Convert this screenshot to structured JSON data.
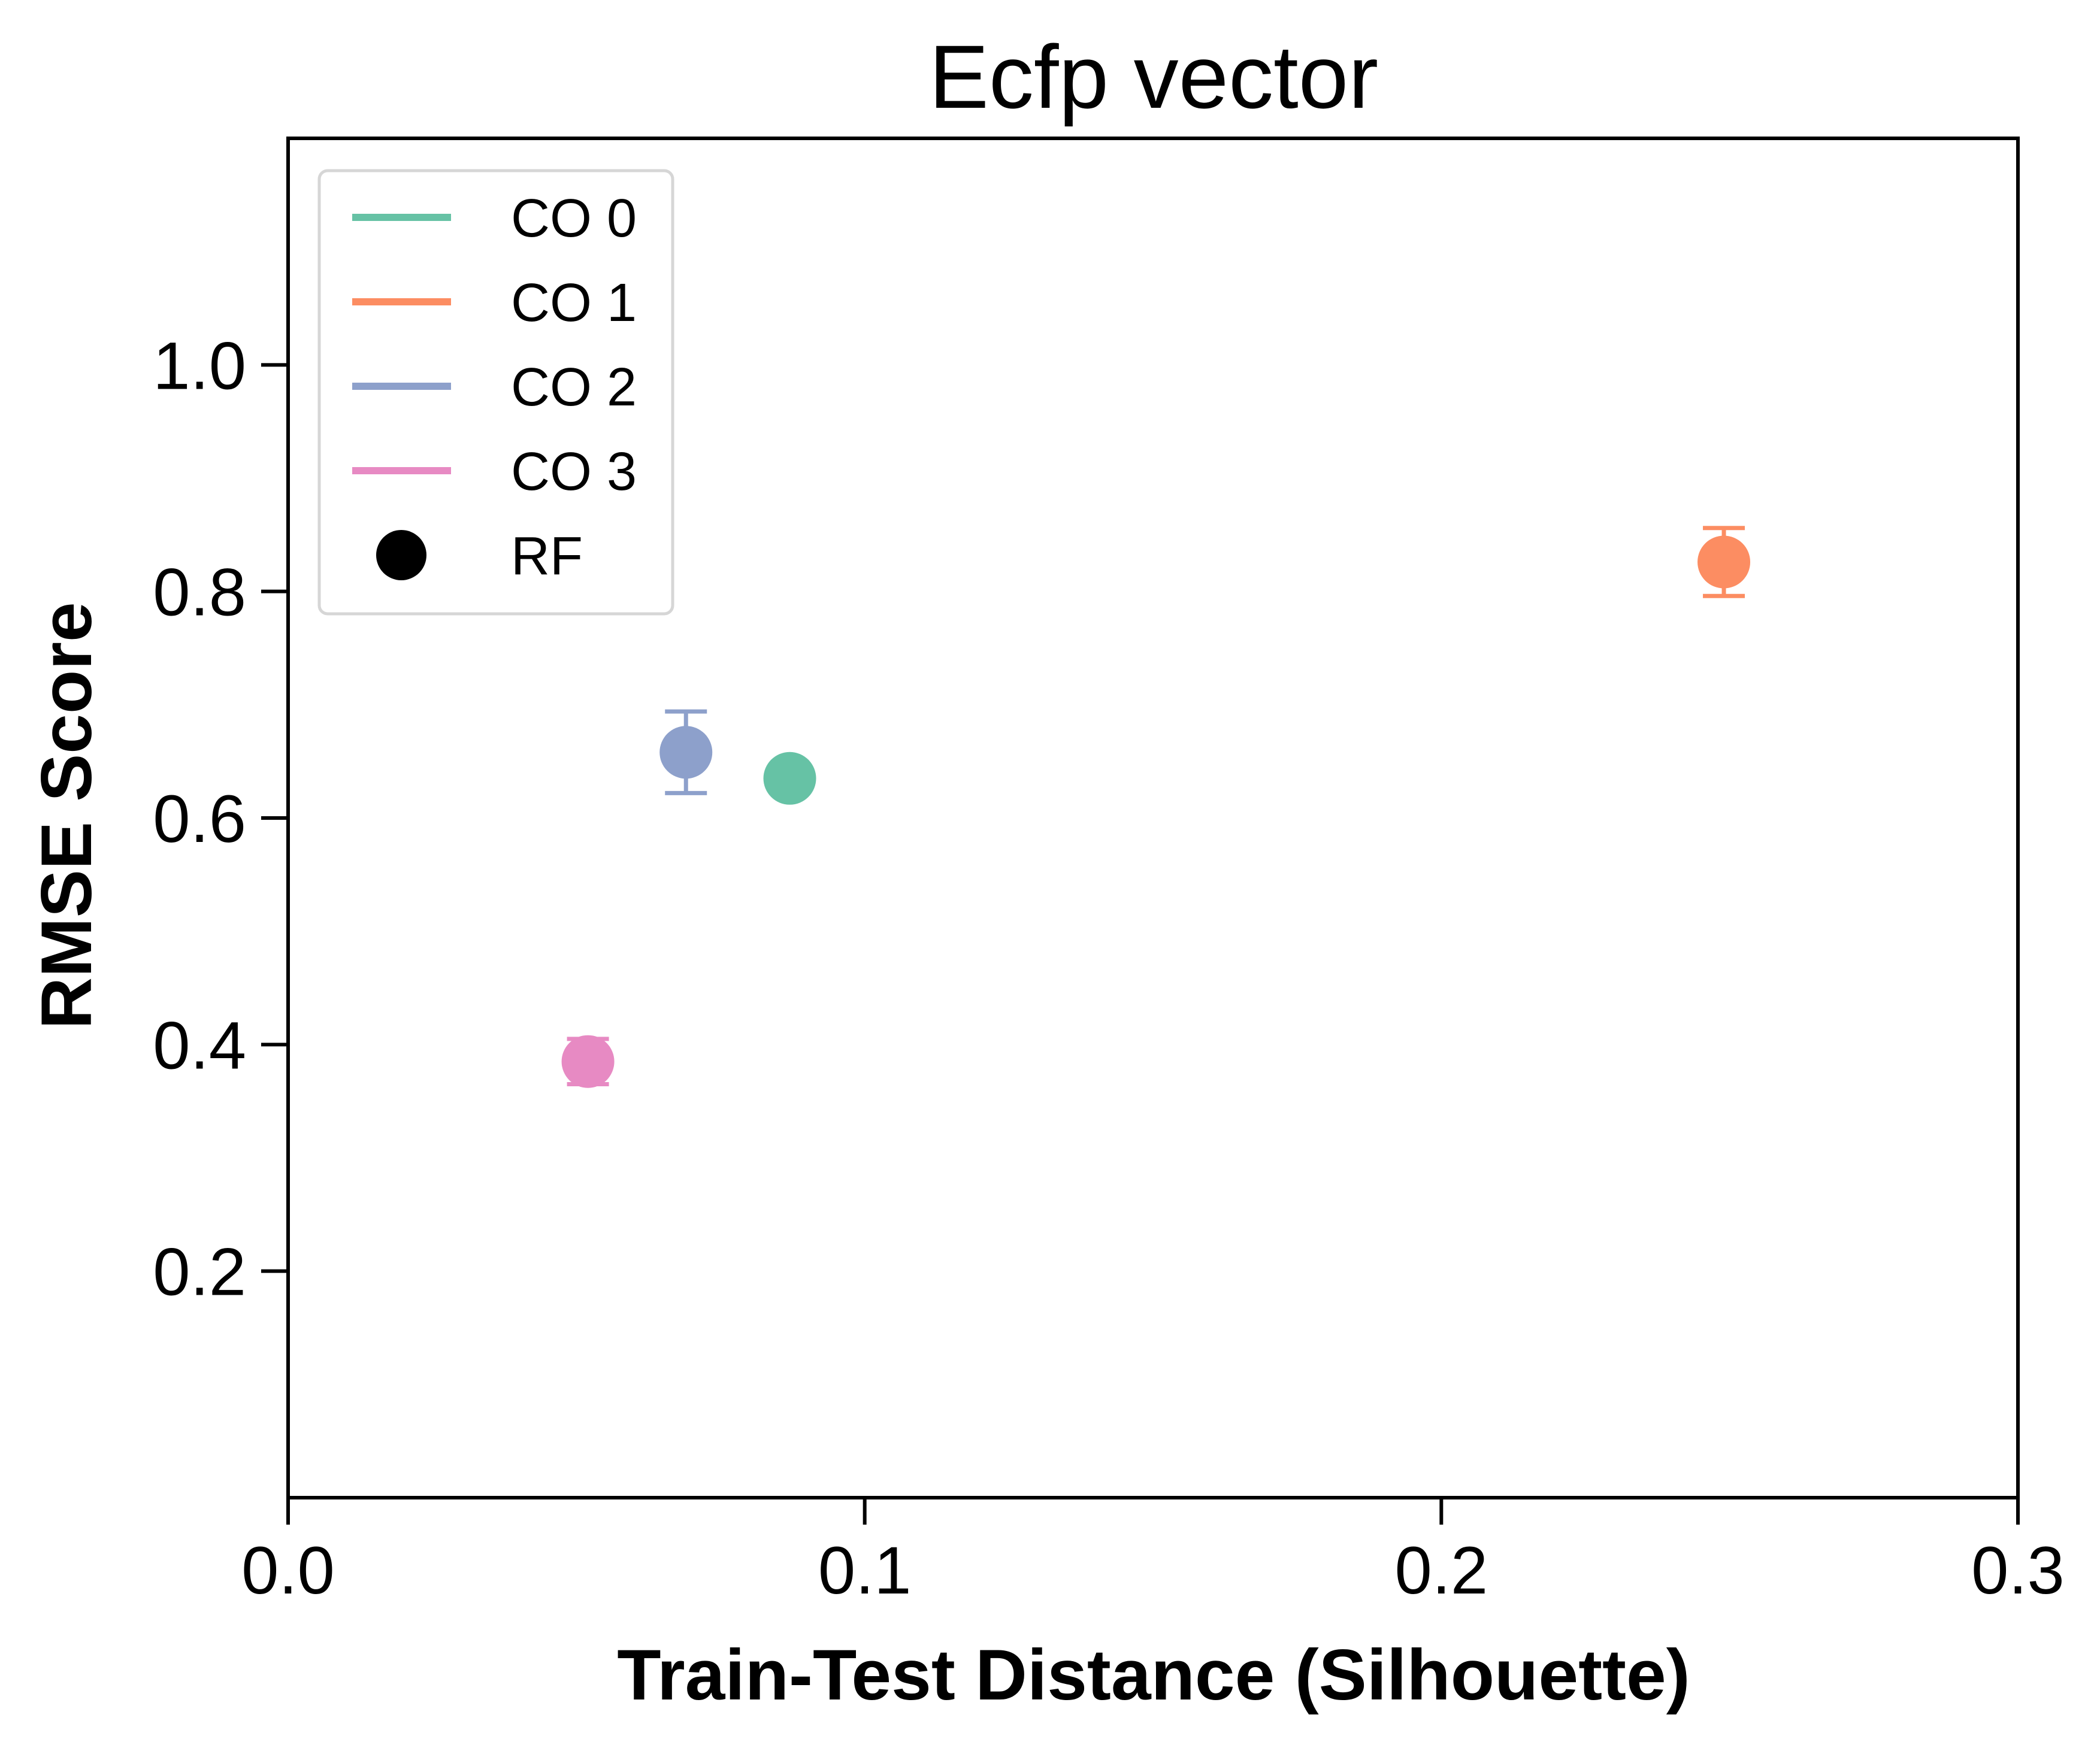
{
  "chart_data": {
    "type": "scatter",
    "title": "Ecfp vector",
    "xlabel": "Train-Test Distance (Silhouette)",
    "ylabel": "RMSE Score",
    "xlim": [
      0.0,
      0.3
    ],
    "ylim": [
      0.0,
      1.2
    ],
    "x_ticks": [
      0.0,
      0.1,
      0.2,
      0.3
    ],
    "x_tick_labels": [
      "0.0",
      "0.1",
      "0.2",
      "0.3"
    ],
    "y_ticks": [
      0.2,
      0.4,
      0.6,
      0.8,
      1.0
    ],
    "y_tick_labels": [
      "0.2",
      "0.4",
      "0.6",
      "0.8",
      "1.0"
    ],
    "grid": false,
    "legend_position": "top-left",
    "legend": [
      {
        "label": "CO 0",
        "kind": "line",
        "color": "#66c2a5"
      },
      {
        "label": "CO 1",
        "kind": "line",
        "color": "#fc8d62"
      },
      {
        "label": "CO 2",
        "kind": "line",
        "color": "#8da0cb"
      },
      {
        "label": "CO 3",
        "kind": "line",
        "color": "#e78ac3"
      },
      {
        "label": "RF",
        "kind": "marker",
        "color": "#000000"
      }
    ],
    "series": [
      {
        "name": "CO 0",
        "color": "#66c2a5",
        "points": [
          {
            "x": 0.087,
            "y": 0.635,
            "err": 0.0
          }
        ]
      },
      {
        "name": "CO 1",
        "color": "#fc8d62",
        "points": [
          {
            "x": 0.249,
            "y": 0.826,
            "err": 0.03
          }
        ]
      },
      {
        "name": "CO 2",
        "color": "#8da0cb",
        "points": [
          {
            "x": 0.069,
            "y": 0.658,
            "err": 0.036
          }
        ]
      },
      {
        "name": "CO 3",
        "color": "#e78ac3",
        "points": [
          {
            "x": 0.052,
            "y": 0.385,
            "err": 0.02
          }
        ]
      }
    ]
  }
}
